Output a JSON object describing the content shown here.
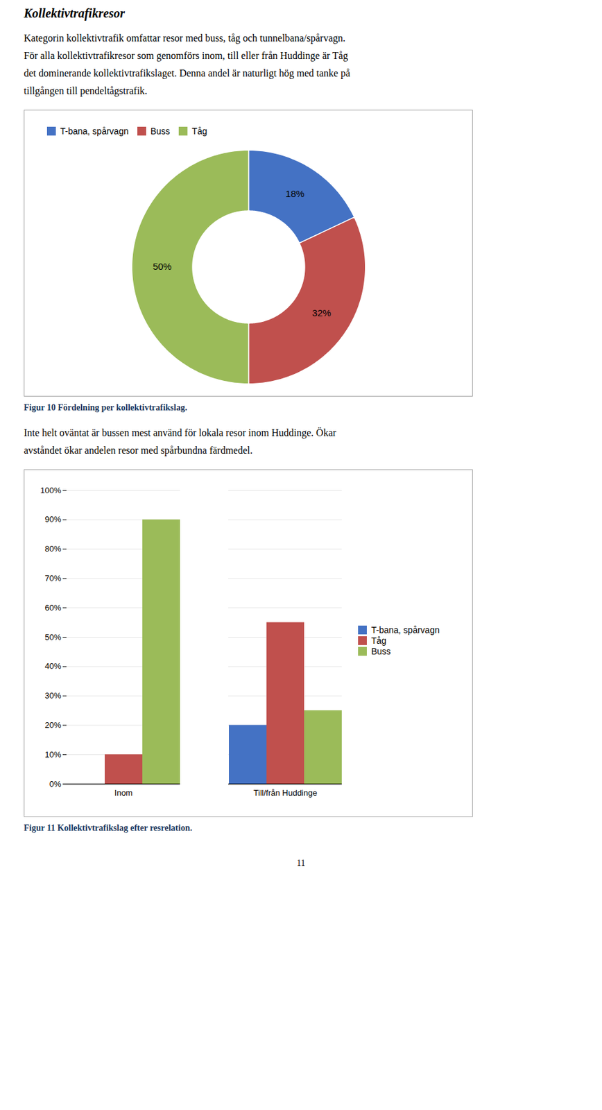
{
  "chart_data": [
    {
      "type": "pie",
      "title": "Kollektivtrafikresor",
      "subtitle": [
        "Kategorin kollektivtrafik omfattar resor med buss, tåg och tunnelbana/spårvagn.",
        "För alla kollektivtrafikresor som genomförs inom, till eller från Huddinge är Tåg",
        "det dominerande kollektivtrafikslaget. Denna andel är naturligt hög med tanke på",
        "tillgången till pendeltågstrafik."
      ],
      "caption": "Figur 10 Fördelning per kollektivtrafikslag.",
      "categories": [
        "T-bana, spårvagn",
        "Buss",
        "Tåg"
      ],
      "values": [
        18,
        32,
        50
      ],
      "value_labels": [
        "18%",
        "32%",
        "50%"
      ],
      "colors": [
        "#4472C4",
        "#C0504D",
        "#9BBB59"
      ],
      "data_labels": true,
      "legend": "top"
    },
    {
      "type": "bar",
      "subtitle": [
        "Inte helt oväntat är bussen mest använd för lokala resor inom Huddinge. Ökar",
        "avståndet ökar andelen resor med spårbundna färdmedel."
      ],
      "caption": "Figur 11 Kollektivtrafikslag efter resrelation.",
      "categories": [
        "Inom",
        "Till/från Huddinge"
      ],
      "series": [
        {
          "name": "T-bana, spårvagn",
          "color": "#4472C4",
          "values": [
            0,
            20
          ]
        },
        {
          "name": "Tåg",
          "color": "#C0504D",
          "values": [
            10,
            55
          ]
        },
        {
          "name": "Buss",
          "color": "#9BBB59",
          "values": [
            90,
            25
          ]
        }
      ],
      "ylim": [
        0,
        100
      ],
      "yticks": [
        {
          "value": 0,
          "label": "0%"
        },
        {
          "value": 10,
          "label": "10%"
        },
        {
          "value": 20,
          "label": "20%"
        },
        {
          "value": 30,
          "label": "30%"
        },
        {
          "value": 40,
          "label": "40%"
        },
        {
          "value": 50,
          "label": "50%"
        },
        {
          "value": 60,
          "label": "60%"
        },
        {
          "value": 70,
          "label": "70%"
        },
        {
          "value": 80,
          "label": "80%"
        },
        {
          "value": 90,
          "label": "90%"
        },
        {
          "value": 100,
          "label": "100%"
        }
      ],
      "grid": true,
      "legend": "right",
      "annotations": [
        "11"
      ]
    }
  ]
}
